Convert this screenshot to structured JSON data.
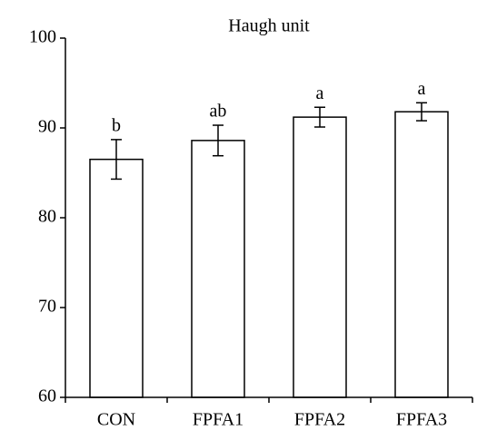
{
  "chart_data": {
    "type": "bar",
    "title": "Haugh unit",
    "categories": [
      "CON",
      "FPFA1",
      "FPFA2",
      "FPFA3"
    ],
    "values": [
      86.5,
      88.6,
      91.2,
      91.8
    ],
    "errors": [
      2.2,
      1.7,
      1.1,
      1.0
    ],
    "annotations": [
      "b",
      "ab",
      "a",
      "a"
    ],
    "color": "#ffffff",
    "ylim": [
      60,
      100
    ],
    "yticks": [
      60,
      70,
      80,
      90,
      100
    ],
    "grid": false
  }
}
